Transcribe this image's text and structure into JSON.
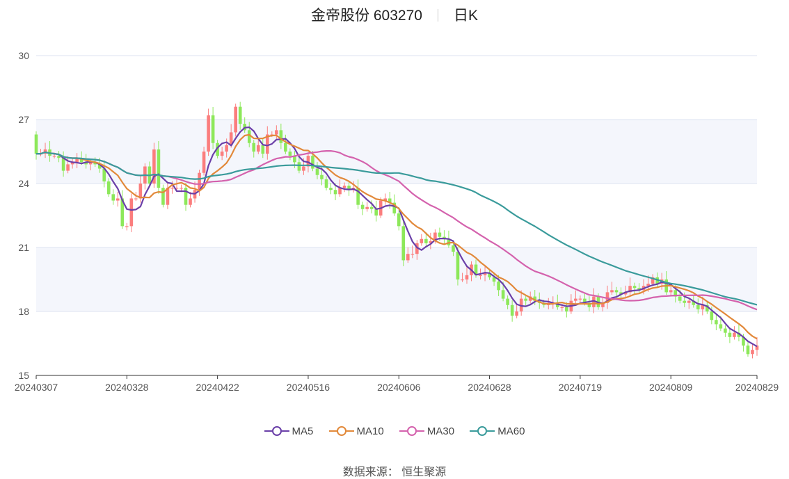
{
  "header": {
    "title": "金帝股份 603270",
    "period": "日K"
  },
  "source": {
    "label": "数据来源：",
    "value": "恒生聚源"
  },
  "colors": {
    "up": "#fb7d7d",
    "down": "#8de85a",
    "grid": "#dde3f0",
    "band": "#f4f6fc",
    "axis": "#333333"
  },
  "chart_data": {
    "type": "candlestick",
    "title": "金帝股份 603270 日K",
    "xlabel": "",
    "ylabel": "",
    "ylim": [
      15,
      30
    ],
    "y_ticks": [
      "15",
      "18",
      "21",
      "24",
      "27",
      "30"
    ],
    "x_ticks": [
      "20240307",
      "20240328",
      "20240422",
      "20240516",
      "20240606",
      "20240628",
      "20240719",
      "20240809",
      "20240829"
    ],
    "x_tick_index": [
      0,
      20,
      40,
      60,
      80,
      100,
      120,
      140,
      159
    ],
    "legend": [
      {
        "name": "MA5",
        "color": "#6a3fa8"
      },
      {
        "name": "MA10",
        "color": "#e2893a"
      },
      {
        "name": "MA30",
        "color": "#d462ad"
      },
      {
        "name": "MA60",
        "color": "#3a9b9b"
      }
    ],
    "close": [
      25.4,
      25.4,
      25.6,
      25.3,
      25.3,
      25.2,
      24.6,
      24.9,
      25.0,
      25.2,
      25.0,
      24.9,
      25.0,
      24.9,
      24.7,
      24.1,
      23.5,
      23.2,
      23.3,
      22.0,
      22.0,
      23.3,
      23.3,
      24.0,
      24.8,
      24.0,
      25.6,
      23.8,
      23.0,
      23.8,
      23.8,
      23.8,
      23.8,
      23.0,
      23.3,
      23.7,
      24.5,
      25.5,
      27.2,
      25.9,
      25.3,
      25.5,
      25.8,
      26.4,
      27.6,
      26.8,
      26.5,
      25.9,
      25.5,
      25.8,
      25.4,
      26.3,
      26.3,
      26.5,
      25.9,
      25.5,
      25.3,
      25.0,
      24.6,
      24.8,
      25.3,
      24.7,
      24.4,
      24.2,
      23.8,
      23.7,
      23.5,
      23.8,
      23.9,
      23.7,
      23.8,
      23.0,
      22.8,
      22.9,
      22.8,
      22.5,
      23.2,
      23.3,
      23.1,
      22.6,
      22.0,
      20.4,
      20.7,
      20.7,
      21.2,
      21.4,
      21.2,
      21.3,
      21.7,
      21.5,
      21.4,
      21.1,
      20.8,
      19.5,
      19.5,
      19.7,
      20.2,
      19.7,
      19.7,
      19.8,
      19.6,
      19.4,
      19.0,
      18.6,
      18.3,
      17.8,
      18.0,
      18.6,
      18.5,
      18.7,
      18.5,
      18.4,
      18.3,
      18.4,
      18.4,
      18.2,
      18.2,
      18.0,
      18.5,
      18.6,
      18.6,
      18.4,
      18.2,
      18.7,
      18.2,
      18.4,
      18.9,
      19.0,
      18.9,
      18.8,
      18.9,
      19.2,
      19.1,
      19.0,
      19.2,
      19.3,
      19.6,
      19.3,
      19.5,
      18.9,
      19.0,
      18.7,
      18.5,
      18.4,
      18.5,
      18.3,
      18.1,
      18.3,
      18.0,
      17.6,
      17.4,
      17.2,
      17.0,
      16.8,
      17.0,
      16.8,
      16.4,
      16.0,
      16.2,
      16.4
    ]
  }
}
